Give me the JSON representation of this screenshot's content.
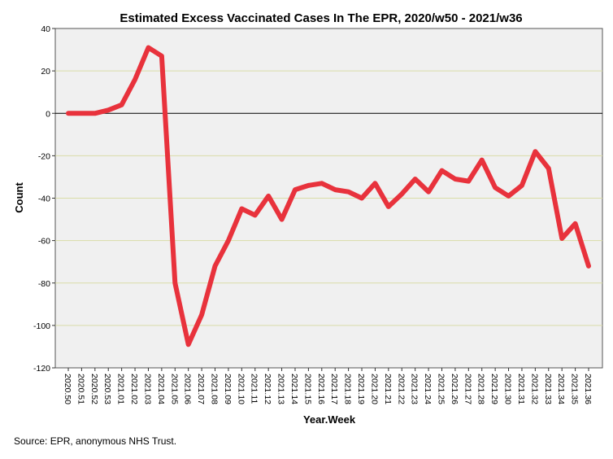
{
  "chart_data": {
    "type": "line",
    "title": "Estimated Excess Vaccinated Cases In The EPR, 2020/w50 - 2021/w36",
    "xlabel": "Year.Week",
    "ylabel": "Count",
    "ylim": [
      -120,
      40
    ],
    "yticks": [
      40,
      20,
      0,
      -20,
      -40,
      -60,
      -80,
      -100,
      -120
    ],
    "grid": true,
    "reference_line": 0,
    "categories": [
      "2020.50",
      "2020.51",
      "2020.52",
      "2020.53",
      "2021.01",
      "2021.02",
      "2021.03",
      "2021.04",
      "2021.05",
      "2021.06",
      "2021.07",
      "2021.08",
      "2021.09",
      "2021.10",
      "2021.11",
      "2021.12",
      "2021.13",
      "2021.14",
      "2021.15",
      "2021.16",
      "2021.17",
      "2021.18",
      "2021.19",
      "2021.20",
      "2021.21",
      "2021.22",
      "2021.23",
      "2021.24",
      "2021.25",
      "2021.26",
      "2021.27",
      "2021.28",
      "2021.29",
      "2021.30",
      "2021.31",
      "2021.32",
      "2021.33",
      "2021.34",
      "2021.35",
      "2021.36"
    ],
    "series": [
      {
        "name": "Estimated excess vaccinated cases",
        "color": "#e8323c",
        "values": [
          0,
          0,
          0,
          1.5,
          4,
          16,
          31,
          27,
          -80,
          -109,
          -95,
          -72,
          -60,
          -45,
          -48,
          -39,
          -50,
          -36,
          -34,
          -33,
          -36,
          -37,
          -40,
          -33,
          -44,
          -38,
          -31,
          -37,
          -27,
          -31,
          -32,
          -22,
          -35,
          -39,
          -34,
          -18,
          -26,
          -59,
          -52,
          -72
        ]
      }
    ]
  },
  "source_note": "Source: EPR, anonymous NHS Trust."
}
